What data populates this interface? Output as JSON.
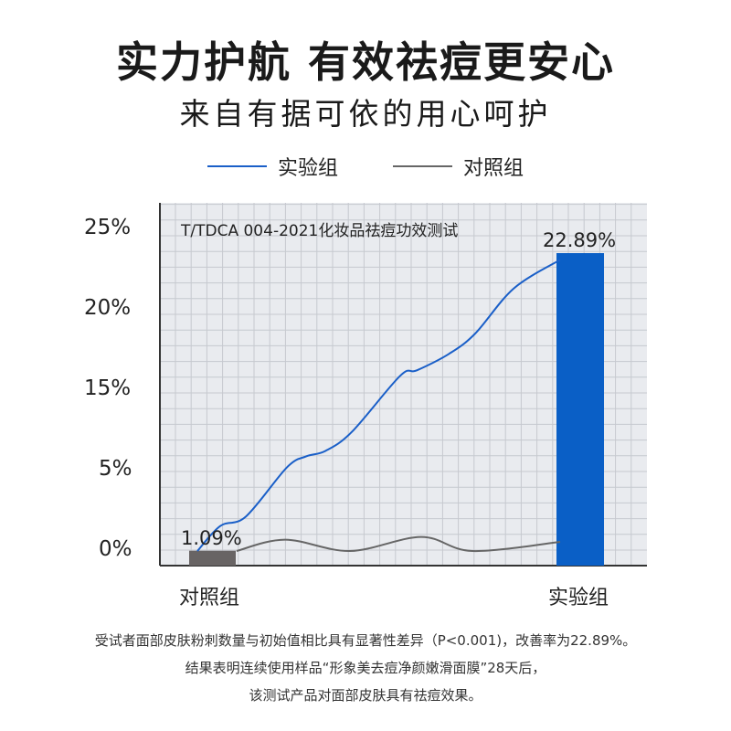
{
  "header": {
    "title": "实力护航 有效祛痘更安心",
    "subtitle": "来自有据可依的用心呵护"
  },
  "chart_data": {
    "type": "line",
    "title": "T/TDCA 004-2021化妆品祛痘功效测试",
    "legend": [
      {
        "name": "实验组",
        "color": "#1a5fc8"
      },
      {
        "name": "对照组",
        "color": "#666666"
      }
    ],
    "legend_position": "top-center",
    "y_ticks": [
      "25%",
      "20%",
      "15%",
      "5%",
      "0%"
    ],
    "x_categories": [
      "对照组",
      "实验组"
    ],
    "grid": true,
    "series": [
      {
        "name": "实验组",
        "color": "#1a5fc8",
        "x": [
          0,
          6.3,
          13.4,
          24.7,
          30.0,
          35.3,
          42.6,
          55.9,
          60.5,
          69.3,
          76.6,
          87.2,
          100
        ],
        "y": [
          1.07,
          2.9,
          3.6,
          7.2,
          8.0,
          8.4,
          9.8,
          13.9,
          14.3,
          15.5,
          17.0,
          20.3,
          22.4
        ]
      },
      {
        "name": "对照组",
        "color": "#666666",
        "x": [
          10.8,
          24.2,
          42.1,
          61.7,
          75.8,
          100
        ],
        "y": [
          1.07,
          1.9,
          1.07,
          2.1,
          1.07,
          1.74
        ]
      }
    ],
    "bars": [
      {
        "name": "对照组",
        "value": 1.09,
        "label": "1.09%",
        "color": "#686464"
      },
      {
        "name": "实验组",
        "value": 22.89,
        "label": "22.89%",
        "color": "#0a5fc6"
      }
    ]
  },
  "notes": [
    "受试者面部皮肤粉刺数量与初始值相比具有显著性差异（P<0.001)，改善率为22.89%。",
    "结果表明连续使用样品“形象美去痘净颜嫩滑面膜”28天后，",
    "该测试产品对面部皮肤具有祛痘效果。"
  ]
}
